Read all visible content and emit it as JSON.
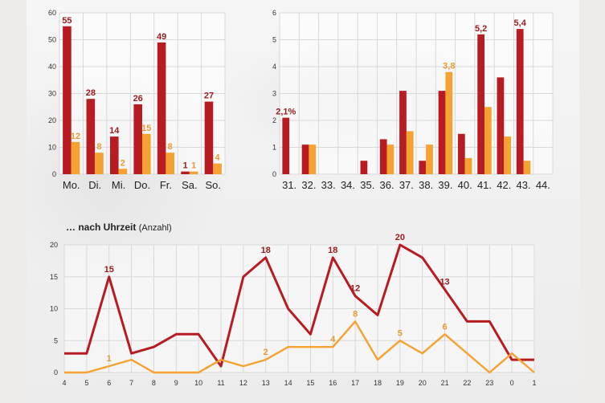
{
  "colors": {
    "series_dark": "#b71c22",
    "series_orange": "#f5a232",
    "label_dark": "#9b1b1f",
    "label_orange": "#e89b33",
    "grid": "#d9d9d9"
  },
  "hour_section": {
    "title": "… nach Uhrzeit",
    "unit": "(Anzahl)"
  },
  "chart_data": [
    {
      "type": "bar",
      "title": "",
      "categories": [
        "Mo.",
        "Di.",
        "Mi.",
        "Do.",
        "Fr.",
        "Sa.",
        "So."
      ],
      "series": [
        {
          "values": [
            55,
            28,
            14,
            26,
            49,
            1,
            27
          ]
        },
        {
          "values": [
            12,
            8,
            2,
            15,
            8,
            1,
            4
          ]
        }
      ],
      "data_labels": [
        [
          "55",
          "28",
          "14",
          "26",
          "49",
          "1",
          "27"
        ],
        [
          "12",
          "8",
          "2",
          "15",
          "8",
          "1",
          "4"
        ]
      ],
      "y_ticks": [
        "0",
        "10",
        "20",
        "30",
        "40",
        "50",
        "60"
      ],
      "ylim": [
        0,
        60
      ],
      "grid": true
    },
    {
      "type": "bar",
      "title": "",
      "categories": [
        "31.",
        "32.",
        "33.",
        "34.",
        "35.",
        "36.",
        "37.",
        "38.",
        "39.",
        "40.",
        "41.",
        "42.",
        "43.",
        "44."
      ],
      "series": [
        {
          "values": [
            2.1,
            1.1,
            0.0,
            0.0,
            0.5,
            1.3,
            3.1,
            0.5,
            3.1,
            1.5,
            5.2,
            3.6,
            5.4,
            0.0
          ]
        },
        {
          "values": [
            0.0,
            1.1,
            0.0,
            0.0,
            0.0,
            1.1,
            1.6,
            1.1,
            3.8,
            0.6,
            2.5,
            1.4,
            0.5,
            0.0
          ]
        }
      ],
      "data_labels": [
        [
          "2,1%",
          "",
          "",
          "",
          "",
          "",
          "",
          "",
          "",
          "",
          "5,2",
          "",
          "5,4",
          ""
        ],
        [
          "",
          "",
          "",
          "",
          "",
          "",
          "",
          "",
          "3,8",
          "",
          "",
          "",
          "",
          ""
        ]
      ],
      "y_ticks": [
        "0",
        "1",
        "2",
        "3",
        "4",
        "5",
        "6"
      ],
      "ylim": [
        0,
        6
      ],
      "grid": true
    },
    {
      "type": "line",
      "title": "… nach Uhrzeit",
      "x": [
        "4",
        "5",
        "6",
        "7",
        "8",
        "9",
        "10",
        "11",
        "12",
        "13",
        "14",
        "15",
        "16",
        "17",
        "18",
        "19",
        "20",
        "21",
        "22",
        "23",
        "0",
        "1"
      ],
      "series": [
        {
          "values": [
            3,
            3,
            15,
            3,
            4,
            6,
            6,
            1,
            15,
            18,
            10,
            6,
            18,
            12,
            9,
            20,
            18,
            13,
            8,
            8,
            2,
            2
          ]
        },
        {
          "values": [
            0,
            0,
            1,
            2,
            0,
            0,
            0,
            2,
            1,
            2,
            4,
            4,
            4,
            8,
            2,
            5,
            3,
            6,
            3,
            0,
            3,
            0
          ]
        }
      ],
      "data_labels": [
        [
          "",
          "",
          "15",
          "",
          "",
          "",
          "",
          "",
          "",
          "18",
          "",
          "",
          "18",
          "12",
          "",
          "20",
          "",
          "13",
          "",
          "",
          "",
          ""
        ],
        [
          "",
          "",
          "1",
          "",
          "",
          "",
          "",
          "",
          "",
          "2",
          "",
          "",
          "4",
          "8",
          "",
          "5",
          "",
          "6",
          "",
          "",
          "",
          ""
        ]
      ],
      "y_ticks": [
        "0",
        "5",
        "10",
        "15",
        "20"
      ],
      "ylim": [
        0,
        20
      ],
      "grid": true
    }
  ]
}
